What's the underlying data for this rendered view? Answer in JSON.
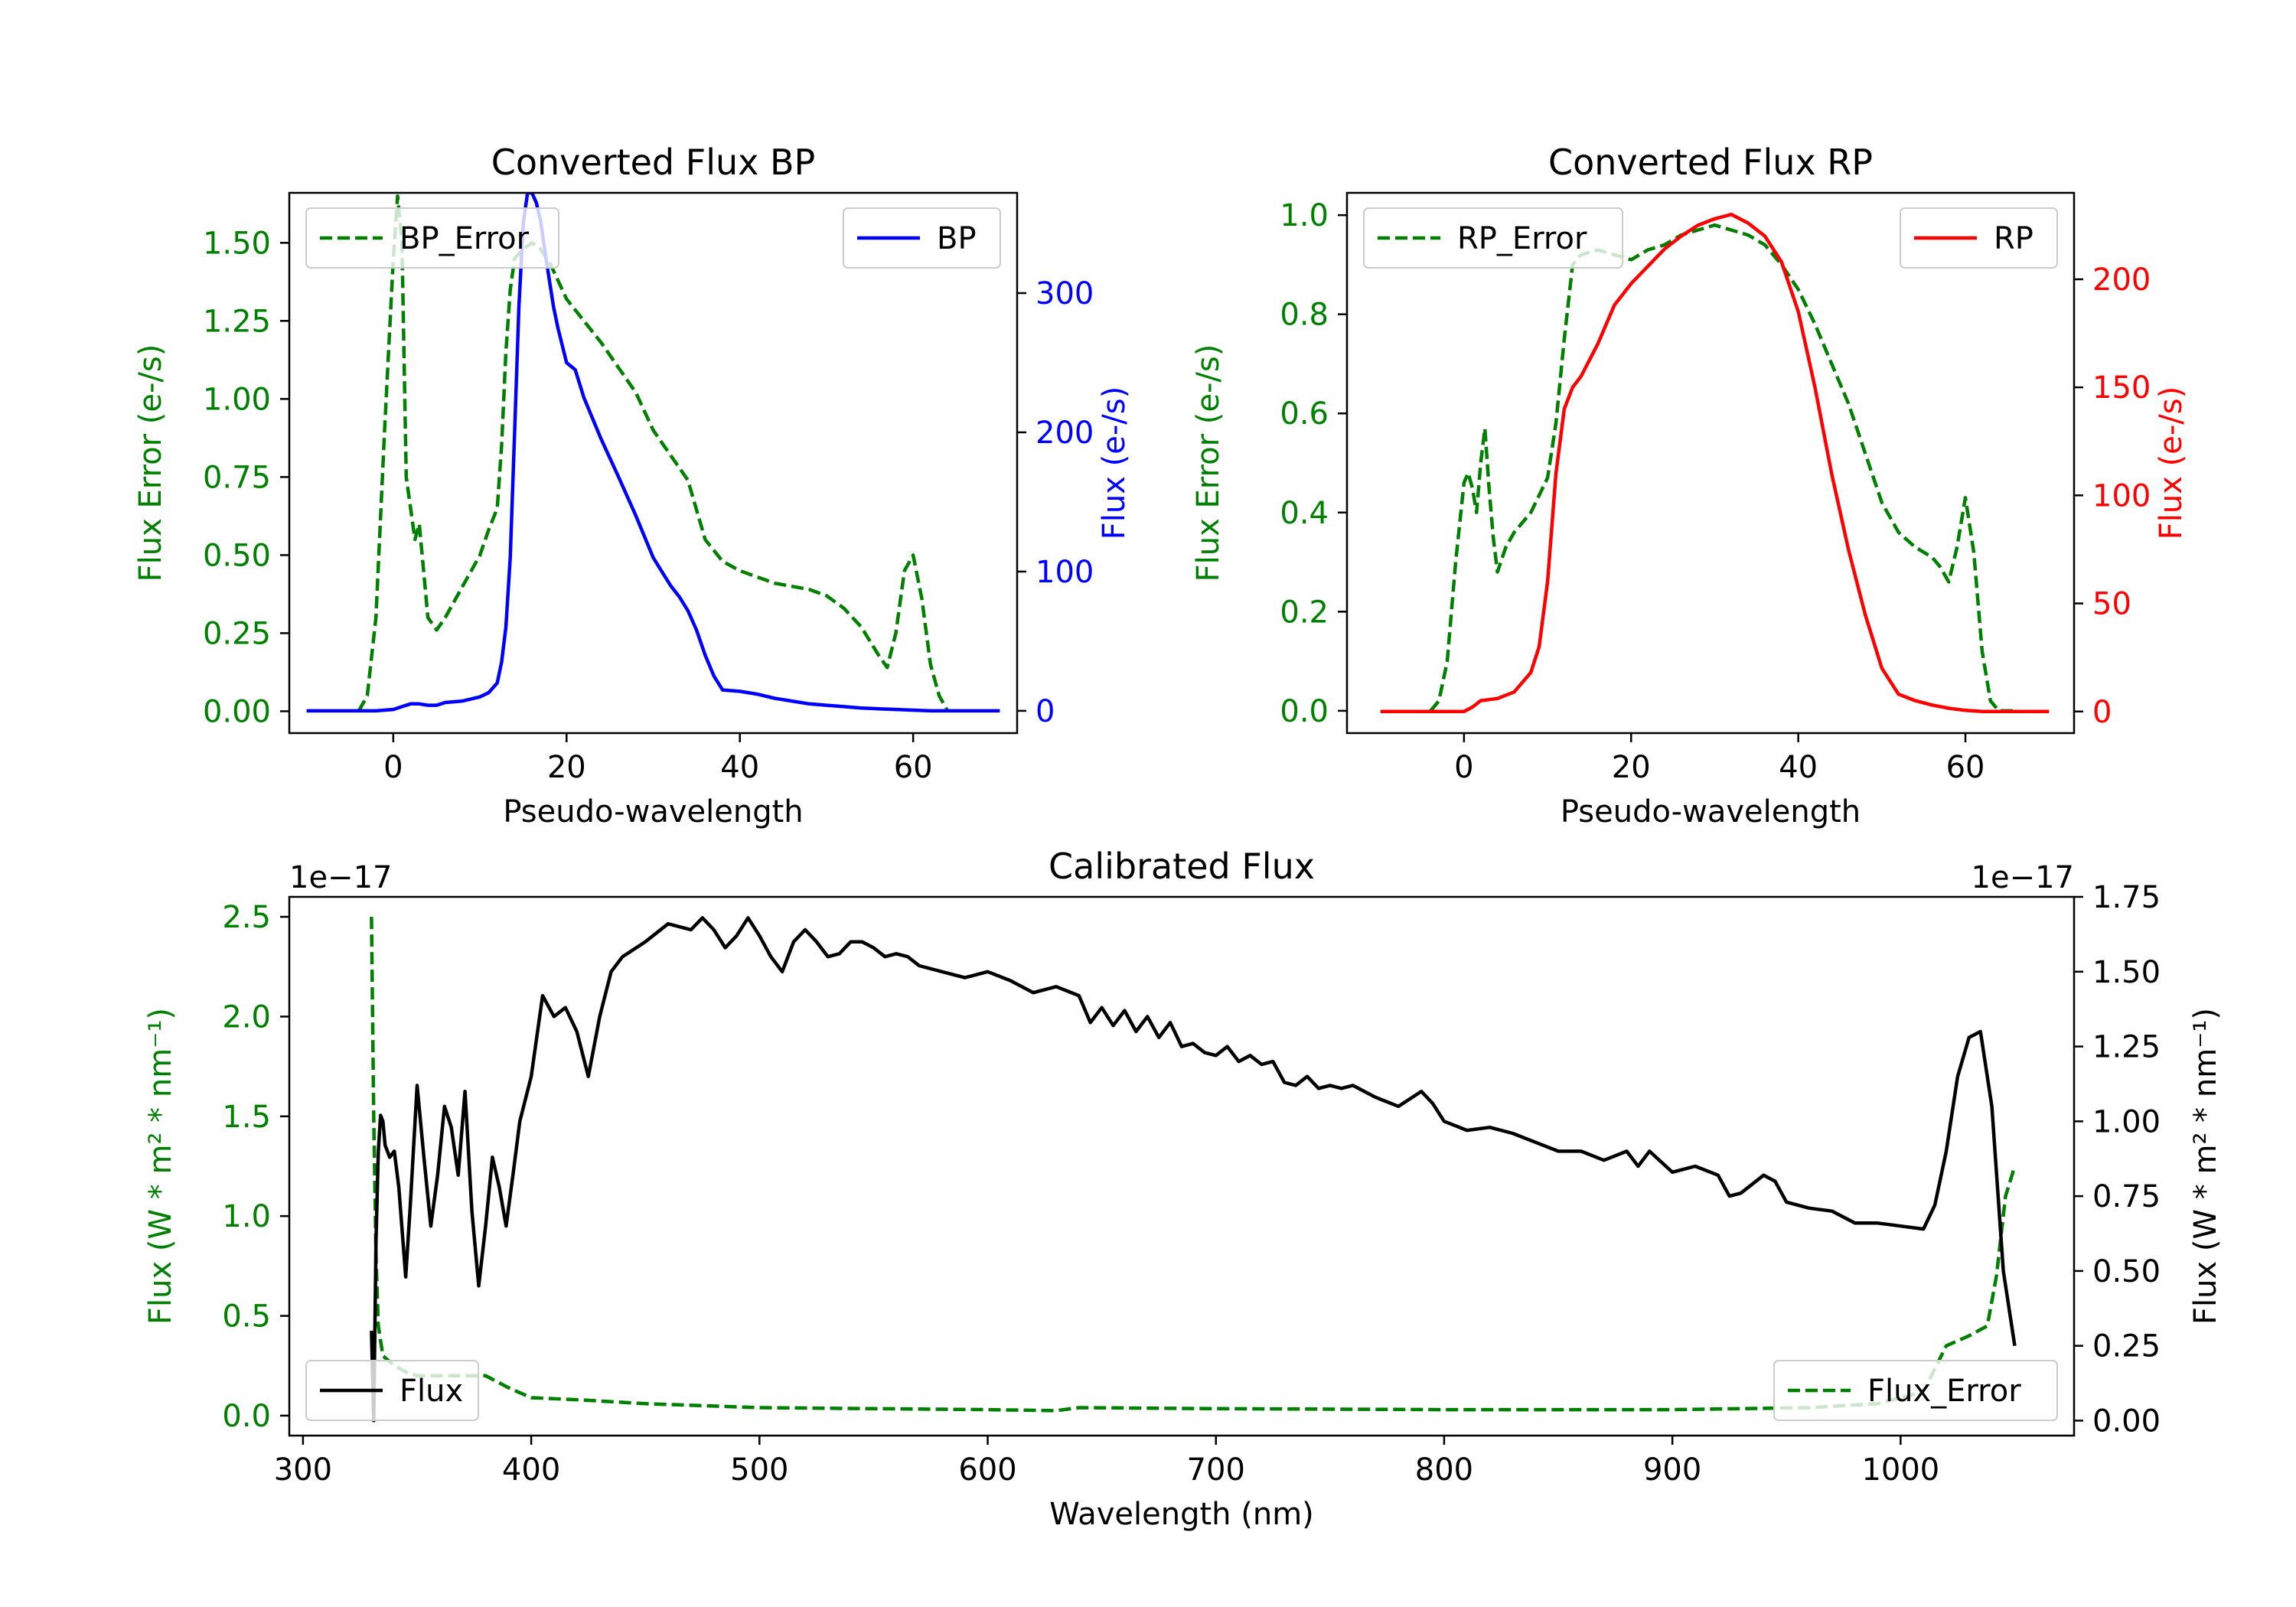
{
  "colors": {
    "axis": "#000000",
    "error": "#008000",
    "bp": "#0000ff",
    "rp": "#ff0000",
    "flux": "#000000"
  },
  "chart_data": [
    {
      "id": "bp",
      "type": "line",
      "title": "Converted Flux BP",
      "xlabel": "Pseudo-wavelength",
      "ylabel_left": "Flux Error (e-/s)",
      "ylabel_right": "Flux (e-/s)",
      "xlim": [
        -12,
        72
      ],
      "ylim_left": [
        -0.07,
        1.66
      ],
      "ylim_right": [
        -16,
        372
      ],
      "xticks": [
        0,
        20,
        40,
        60
      ],
      "yticks_left": [
        0.0,
        0.25,
        0.5,
        0.75,
        1.0,
        1.25,
        1.5
      ],
      "ytick_labels_left": [
        "0.00",
        "0.25",
        "0.50",
        "0.75",
        "1.00",
        "1.25",
        "1.50"
      ],
      "yticks_right": [
        0,
        100,
        200,
        300
      ],
      "ytick_labels_right": [
        "0",
        "100",
        "200",
        "300"
      ],
      "legend_left": {
        "label": "BP_Error",
        "position": "top-left"
      },
      "legend_right": {
        "label": "BP",
        "position": "top-right"
      },
      "series": [
        {
          "name": "BP_Error",
          "axis": "left",
          "style": "dashed",
          "color_key": "error",
          "x": [
            -4,
            -3,
            -2,
            -1,
            0,
            0.5,
            1,
            1.5,
            2,
            2.5,
            3,
            3.5,
            4,
            5,
            6,
            7,
            8,
            9,
            10,
            11,
            12,
            12.5,
            13,
            13.5,
            14,
            15,
            16,
            17,
            18,
            19,
            20,
            22,
            24,
            26,
            28,
            30,
            32,
            34,
            36,
            38,
            40,
            44,
            48,
            50,
            52,
            54,
            56,
            57,
            58,
            59,
            60,
            61,
            62,
            63,
            64
          ],
          "y": [
            0.0,
            0.05,
            0.3,
            0.9,
            1.45,
            1.65,
            1.5,
            0.75,
            0.65,
            0.55,
            0.6,
            0.45,
            0.3,
            0.26,
            0.3,
            0.35,
            0.4,
            0.45,
            0.5,
            0.58,
            0.65,
            0.85,
            1.15,
            1.35,
            1.45,
            1.48,
            1.5,
            1.48,
            1.44,
            1.38,
            1.32,
            1.25,
            1.18,
            1.1,
            1.02,
            0.9,
            0.82,
            0.74,
            0.55,
            0.48,
            0.45,
            0.41,
            0.39,
            0.37,
            0.33,
            0.27,
            0.18,
            0.14,
            0.25,
            0.45,
            0.5,
            0.36,
            0.15,
            0.05,
            0.0
          ]
        },
        {
          "name": "BP",
          "axis": "right",
          "style": "solid",
          "color_key": "bp",
          "x": [
            -10,
            -6,
            -2,
            0,
            1,
            2,
            3,
            4,
            5,
            6,
            8,
            10,
            11,
            12,
            12.5,
            13,
            13.5,
            14,
            14.5,
            15,
            15.5,
            16,
            16.5,
            17,
            17.5,
            18,
            18.5,
            19,
            20,
            21,
            22,
            24,
            26,
            28,
            29,
            30,
            31,
            32,
            33,
            34,
            35,
            36,
            37,
            38,
            40,
            42,
            44,
            46,
            48,
            50,
            52,
            54,
            56,
            58,
            60,
            62,
            64,
            66,
            68,
            70
          ],
          "y": [
            0,
            0,
            0,
            1,
            3,
            5,
            5,
            4,
            4,
            6,
            7,
            10,
            13,
            20,
            35,
            60,
            110,
            200,
            290,
            350,
            372,
            372,
            365,
            352,
            330,
            310,
            290,
            275,
            250,
            245,
            225,
            195,
            168,
            140,
            125,
            110,
            100,
            90,
            82,
            72,
            58,
            40,
            25,
            15,
            14,
            12,
            9,
            7,
            5,
            4,
            3,
            2,
            1.5,
            1,
            0.5,
            0,
            0,
            0,
            0,
            0
          ]
        }
      ]
    },
    {
      "id": "rp",
      "type": "line",
      "title": "Converted Flux RP",
      "xlabel": "Pseudo-wavelength",
      "ylabel_left": "Flux Error (e-/s)",
      "ylabel_right": "Flux (e-/s)",
      "xlim": [
        -14,
        73
      ],
      "ylim_left": [
        -0.045,
        1.045
      ],
      "ylim_right": [
        -10,
        240
      ],
      "xticks": [
        0,
        20,
        40,
        60
      ],
      "yticks_left": [
        0.0,
        0.2,
        0.4,
        0.6,
        0.8,
        1.0
      ],
      "ytick_labels_left": [
        "0.0",
        "0.2",
        "0.4",
        "0.6",
        "0.8",
        "1.0"
      ],
      "yticks_right": [
        0,
        50,
        100,
        150,
        200
      ],
      "ytick_labels_right": [
        "0",
        "50",
        "100",
        "150",
        "200"
      ],
      "legend_left": {
        "label": "RP_Error",
        "position": "top-left"
      },
      "legend_right": {
        "label": "RP",
        "position": "top-right"
      },
      "series": [
        {
          "name": "RP_Error",
          "axis": "left",
          "style": "dashed",
          "color_key": "error",
          "x": [
            -4,
            -3,
            -2,
            -1,
            0,
            0.5,
            1,
            1.5,
            2,
            2.5,
            3,
            3.5,
            4,
            5,
            6,
            8,
            10,
            11,
            12,
            13,
            14,
            16,
            18,
            20,
            22,
            24,
            26,
            28,
            30,
            32,
            34,
            36,
            38,
            40,
            42,
            44,
            46,
            48,
            50,
            52,
            54,
            56,
            57,
            58,
            59,
            60,
            61,
            62,
            63,
            64,
            66
          ],
          "y": [
            0.0,
            0.02,
            0.1,
            0.3,
            0.46,
            0.48,
            0.45,
            0.4,
            0.5,
            0.57,
            0.45,
            0.35,
            0.28,
            0.33,
            0.36,
            0.4,
            0.47,
            0.58,
            0.75,
            0.9,
            0.92,
            0.93,
            0.92,
            0.91,
            0.93,
            0.94,
            0.96,
            0.97,
            0.98,
            0.97,
            0.96,
            0.94,
            0.9,
            0.85,
            0.78,
            0.7,
            0.62,
            0.52,
            0.42,
            0.36,
            0.33,
            0.31,
            0.29,
            0.26,
            0.33,
            0.43,
            0.32,
            0.12,
            0.02,
            0.0,
            0.0
          ]
        },
        {
          "name": "RP",
          "axis": "right",
          "style": "solid",
          "color_key": "rp",
          "x": [
            -10,
            -4,
            -2,
            0,
            1,
            2,
            4,
            6,
            8,
            9,
            10,
            11,
            12,
            13,
            14,
            16,
            18,
            20,
            22,
            24,
            26,
            28,
            30,
            32,
            34,
            36,
            38,
            40,
            42,
            44,
            46,
            48,
            50,
            52,
            54,
            56,
            58,
            60,
            62,
            66,
            70
          ],
          "y": [
            0,
            0,
            0,
            0,
            2,
            5,
            6,
            9,
            18,
            30,
            60,
            110,
            140,
            150,
            155,
            170,
            188,
            198,
            206,
            214,
            220,
            225,
            228,
            230,
            226,
            220,
            208,
            185,
            150,
            110,
            75,
            45,
            20,
            8,
            5,
            3,
            1.5,
            0.5,
            0,
            0,
            0
          ]
        }
      ]
    },
    {
      "id": "calibrated",
      "type": "line",
      "title": "Calibrated Flux",
      "xlabel": "Wavelength (nm)",
      "ylabel_left": "Flux (W * m² * nm⁻¹)",
      "ylabel_right": "Flux (W * m² * nm⁻¹)",
      "offset_left": "1e−17",
      "offset_right": "1e−17",
      "xlim": [
        294,
        1076
      ],
      "ylim_left": [
        -0.1,
        2.6
      ],
      "ylim_right": [
        -0.05,
        1.75
      ],
      "xticks": [
        300,
        400,
        500,
        600,
        700,
        800,
        900,
        1000
      ],
      "yticks_left": [
        0.0,
        0.5,
        1.0,
        1.5,
        2.0,
        2.5
      ],
      "ytick_labels_left": [
        "0.0",
        "0.5",
        "1.0",
        "1.5",
        "2.0",
        "2.5"
      ],
      "yticks_right": [
        0.0,
        0.25,
        0.5,
        0.75,
        1.0,
        1.25,
        1.5,
        1.75
      ],
      "ytick_labels_right": [
        "0.00",
        "0.25",
        "0.50",
        "0.75",
        "1.00",
        "1.25",
        "1.50",
        "1.75"
      ],
      "legend_left": {
        "label": "Flux",
        "position": "bottom-left"
      },
      "legend_right": {
        "label": "Flux_Error",
        "position": "bottom-right"
      },
      "series": [
        {
          "name": "Flux_Error",
          "axis": "left",
          "style": "dashed",
          "color_key": "error",
          "x": [
            330,
            331,
            332,
            333,
            335,
            340,
            345,
            350,
            360,
            370,
            380,
            390,
            400,
            420,
            450,
            500,
            550,
            600,
            630,
            640,
            700,
            800,
            900,
            960,
            990,
            1010,
            1020,
            1030,
            1038,
            1042,
            1046,
            1050
          ],
          "y": [
            2.5,
            1.5,
            0.8,
            0.45,
            0.3,
            0.25,
            0.22,
            0.2,
            0.2,
            0.2,
            0.2,
            0.14,
            0.09,
            0.08,
            0.06,
            0.04,
            0.035,
            0.03,
            0.025,
            0.04,
            0.035,
            0.03,
            0.03,
            0.04,
            0.06,
            0.12,
            0.35,
            0.4,
            0.45,
            0.7,
            1.1,
            1.25
          ]
        },
        {
          "name": "Flux",
          "axis": "right",
          "style": "solid",
          "color_key": "flux",
          "x": [
            330,
            331,
            332,
            333,
            334,
            335,
            336,
            338,
            340,
            342,
            345,
            347,
            350,
            353,
            356,
            359,
            362,
            365,
            368,
            371,
            374,
            377,
            380,
            383,
            386,
            389,
            392,
            395,
            400,
            405,
            410,
            415,
            420,
            425,
            430,
            435,
            440,
            450,
            460,
            470,
            475,
            480,
            485,
            490,
            495,
            500,
            505,
            510,
            515,
            520,
            525,
            530,
            535,
            540,
            545,
            550,
            555,
            560,
            565,
            570,
            580,
            590,
            600,
            610,
            620,
            630,
            640,
            645,
            650,
            655,
            660,
            665,
            670,
            675,
            680,
            685,
            690,
            695,
            700,
            705,
            710,
            715,
            720,
            725,
            730,
            735,
            740,
            745,
            750,
            755,
            760,
            770,
            780,
            790,
            795,
            800,
            810,
            820,
            830,
            840,
            850,
            860,
            870,
            880,
            885,
            890,
            900,
            910,
            920,
            925,
            930,
            940,
            945,
            950,
            960,
            970,
            980,
            990,
            1000,
            1010,
            1015,
            1020,
            1025,
            1030,
            1035,
            1040,
            1045,
            1050
          ],
          "y": [
            0.3,
            0.0,
            0.6,
            0.9,
            1.02,
            1.0,
            0.92,
            0.88,
            0.9,
            0.78,
            0.48,
            0.72,
            1.12,
            0.88,
            0.65,
            0.82,
            1.05,
            0.98,
            0.82,
            1.1,
            0.7,
            0.45,
            0.65,
            0.88,
            0.78,
            0.65,
            0.82,
            1.0,
            1.15,
            1.42,
            1.35,
            1.38,
            1.3,
            1.15,
            1.35,
            1.5,
            1.55,
            1.6,
            1.66,
            1.64,
            1.68,
            1.64,
            1.58,
            1.62,
            1.68,
            1.62,
            1.55,
            1.5,
            1.6,
            1.64,
            1.6,
            1.55,
            1.56,
            1.6,
            1.6,
            1.58,
            1.55,
            1.56,
            1.55,
            1.52,
            1.5,
            1.48,
            1.5,
            1.47,
            1.43,
            1.45,
            1.42,
            1.33,
            1.38,
            1.32,
            1.37,
            1.3,
            1.35,
            1.28,
            1.33,
            1.25,
            1.26,
            1.23,
            1.22,
            1.25,
            1.2,
            1.22,
            1.19,
            1.2,
            1.13,
            1.12,
            1.15,
            1.11,
            1.12,
            1.11,
            1.12,
            1.08,
            1.05,
            1.1,
            1.06,
            1.0,
            0.97,
            0.98,
            0.96,
            0.93,
            0.9,
            0.9,
            0.87,
            0.9,
            0.85,
            0.9,
            0.83,
            0.85,
            0.82,
            0.75,
            0.76,
            0.82,
            0.8,
            0.73,
            0.71,
            0.7,
            0.66,
            0.66,
            0.65,
            0.64,
            0.72,
            0.9,
            1.15,
            1.28,
            1.3,
            1.05,
            0.5,
            0.25
          ]
        }
      ]
    }
  ]
}
